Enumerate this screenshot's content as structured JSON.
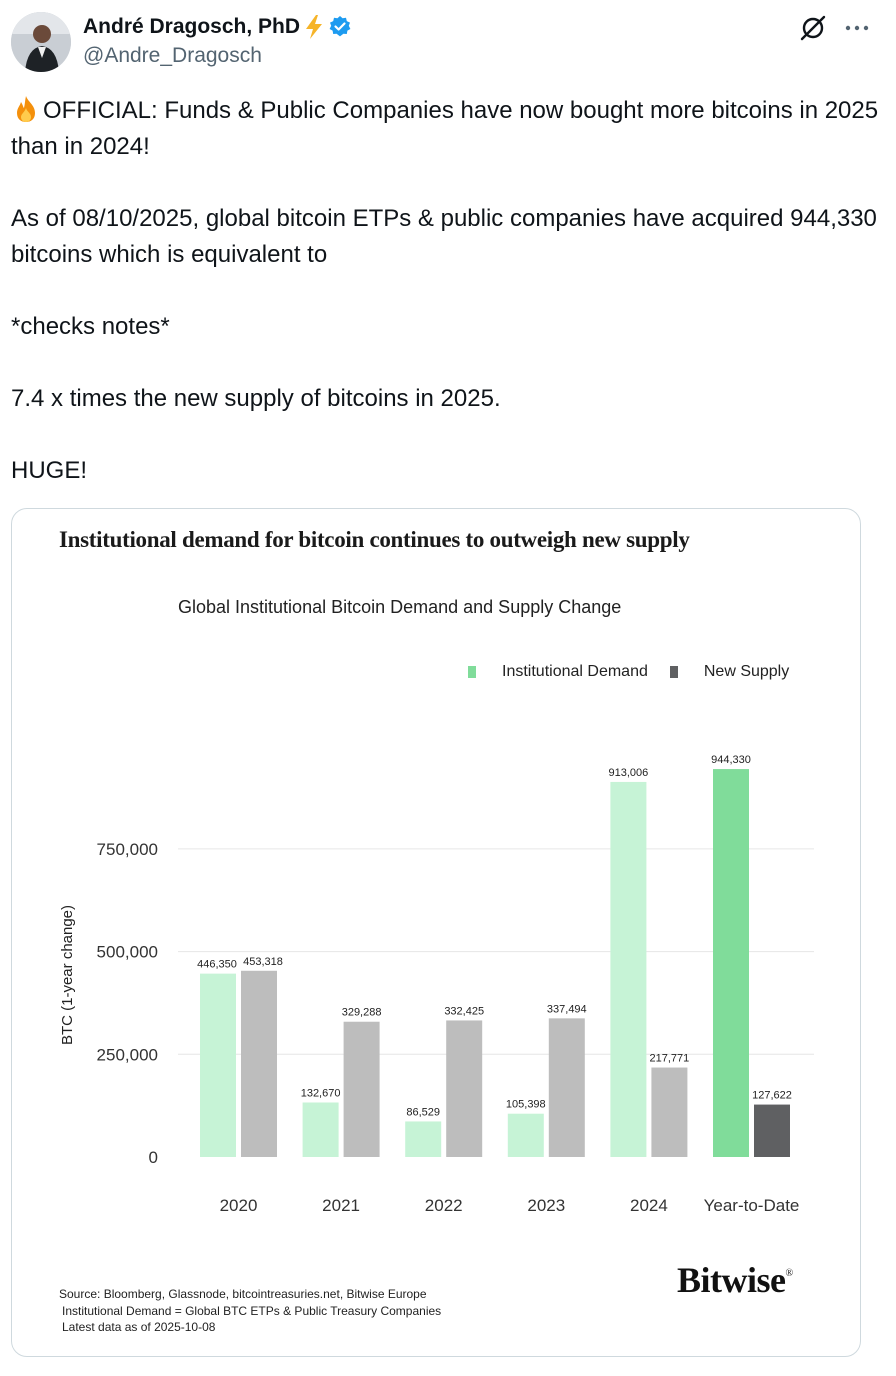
{
  "tweet": {
    "author_name": "André Dragosch, PhD",
    "author_handle": "@Andre_Dragosch",
    "paragraphs": [
      "OFFICIAL: Funds & Public Companies have now bought more bitcoins in 2025 than in 2024!",
      "As of 08/10/2025, global bitcoin ETPs & public companies have acquired 944,330 bitcoins which is equivalent to",
      "*checks notes*",
      "7.4 x times the new supply of bitcoins in 2025.",
      "HUGE!"
    ],
    "icons": [
      "lightning-emoji",
      "verified-badge-icon",
      "grok-icon",
      "more-icon",
      "fire-emoji"
    ]
  },
  "card": {
    "title": "Institutional demand for bitcoin continues to outweigh new supply",
    "source_lines": [
      "Source: Bloomberg, Glassnode, bitcointreasuries.net, Bitwise Europe",
      "Institutional Demand = Global BTC ETPs & Public Treasury Companies",
      "Latest data as of 2025-10-08"
    ],
    "brand": "Bitwise",
    "brand_mark": "®"
  },
  "chart_data": {
    "type": "bar",
    "title": "Global Institutional Bitcoin Demand and Supply Change",
    "xlabel": "",
    "ylabel": "BTC (1-year change)",
    "categories": [
      "2020",
      "2021",
      "2022",
      "2023",
      "2024",
      "Year-to-Date"
    ],
    "series": [
      {
        "name": "Institutional Demand",
        "values": [
          446350,
          132670,
          86529,
          105398,
          913006,
          944330
        ],
        "color": "#c6f3d6",
        "highlight_color": "#80dc9a"
      },
      {
        "name": "New Supply",
        "values": [
          453318,
          329288,
          332425,
          337494,
          217771,
          127622
        ],
        "color": "#bdbdbd",
        "highlight_color": "#5f6062"
      }
    ],
    "data_labels": [
      [
        "446,350",
        "132,670",
        "86,529",
        "105,398",
        "913,006",
        "944,330"
      ],
      [
        "453,318",
        "329,288",
        "332,425",
        "337,494",
        "217,771",
        "127,622"
      ]
    ],
    "yticks": [
      0,
      250000,
      500000,
      750000
    ],
    "ytick_labels": [
      "0",
      "250,000",
      "500,000",
      "750,000"
    ],
    "ylim": [
      0,
      1000000
    ],
    "grid": true,
    "legend_position": "top-right"
  }
}
